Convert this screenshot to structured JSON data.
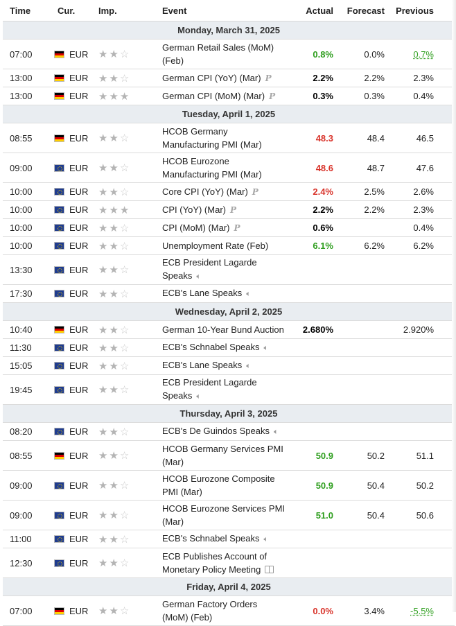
{
  "headers": {
    "time": "Time",
    "cur": "Cur.",
    "imp": "Imp.",
    "event": "Event",
    "actual": "Actual",
    "forecast": "Forecast",
    "previous": "Previous"
  },
  "colors": {
    "green": "#2e9e1e",
    "red": "#d9342b",
    "date_bar": "#e9edf1"
  },
  "groups": [
    {
      "date": "Monday, March 31, 2025",
      "rows": [
        {
          "time": "07:00",
          "flag": "de",
          "cur": "EUR",
          "stars": 2,
          "event": "German Retail Sales (MoM) (Feb)",
          "icon": "",
          "two": true,
          "actual": "0.8%",
          "actual_color": "green",
          "forecast": "0.0%",
          "previous": "0.7%",
          "previous_style": "prev-green"
        },
        {
          "time": "13:00",
          "flag": "de",
          "cur": "EUR",
          "stars": 2,
          "event": "German CPI (YoY) (Mar)",
          "icon": "preliminary-icon",
          "two": false,
          "actual": "2.2%",
          "actual_color": "black",
          "forecast": "2.2%",
          "previous": "2.3%",
          "previous_style": ""
        },
        {
          "time": "13:00",
          "flag": "de",
          "cur": "EUR",
          "stars": 3,
          "event": "German CPI (MoM) (Mar)",
          "icon": "preliminary-icon",
          "two": false,
          "actual": "0.3%",
          "actual_color": "black",
          "forecast": "0.3%",
          "previous": "0.4%",
          "previous_style": ""
        }
      ]
    },
    {
      "date": "Tuesday, April 1, 2025",
      "rows": [
        {
          "time": "08:55",
          "flag": "de",
          "cur": "EUR",
          "stars": 2,
          "event": "HCOB Germany Manufacturing PMI (Mar)",
          "icon": "",
          "two": true,
          "actual": "48.3",
          "actual_color": "red",
          "forecast": "48.4",
          "previous": "46.5",
          "previous_style": ""
        },
        {
          "time": "09:00",
          "flag": "eu",
          "cur": "EUR",
          "stars": 2,
          "event": "HCOB Eurozone Manufacturing PMI (Mar)",
          "icon": "",
          "two": true,
          "actual": "48.6",
          "actual_color": "red",
          "forecast": "48.7",
          "previous": "47.6",
          "previous_style": ""
        },
        {
          "time": "10:00",
          "flag": "eu",
          "cur": "EUR",
          "stars": 2,
          "event": "Core CPI (YoY) (Mar)",
          "icon": "preliminary-icon",
          "two": false,
          "actual": "2.4%",
          "actual_color": "red",
          "forecast": "2.5%",
          "previous": "2.6%",
          "previous_style": ""
        },
        {
          "time": "10:00",
          "flag": "eu",
          "cur": "EUR",
          "stars": 3,
          "event": "CPI (YoY) (Mar)",
          "icon": "preliminary-icon",
          "two": false,
          "actual": "2.2%",
          "actual_color": "black",
          "forecast": "2.2%",
          "previous": "2.3%",
          "previous_style": ""
        },
        {
          "time": "10:00",
          "flag": "eu",
          "cur": "EUR",
          "stars": 2,
          "event": "CPI (MoM) (Mar)",
          "icon": "preliminary-icon",
          "two": false,
          "actual": "0.6%",
          "actual_color": "black",
          "forecast": "",
          "previous": "0.4%",
          "previous_style": ""
        },
        {
          "time": "10:00",
          "flag": "eu",
          "cur": "EUR",
          "stars": 2,
          "event": "Unemployment Rate (Feb)",
          "icon": "",
          "two": false,
          "actual": "6.1%",
          "actual_color": "green",
          "forecast": "6.2%",
          "previous": "6.2%",
          "previous_style": ""
        },
        {
          "time": "13:30",
          "flag": "eu",
          "cur": "EUR",
          "stars": 2,
          "event": "ECB President Lagarde Speaks",
          "icon": "speaker-icon",
          "two": true,
          "actual": "",
          "actual_color": "black",
          "forecast": "",
          "previous": "",
          "previous_style": ""
        },
        {
          "time": "17:30",
          "flag": "eu",
          "cur": "EUR",
          "stars": 2,
          "event": "ECB's Lane Speaks",
          "icon": "speaker-icon",
          "two": false,
          "actual": "",
          "actual_color": "black",
          "forecast": "",
          "previous": "",
          "previous_style": ""
        }
      ]
    },
    {
      "date": "Wednesday, April 2, 2025",
      "rows": [
        {
          "time": "10:40",
          "flag": "de",
          "cur": "EUR",
          "stars": 2,
          "event": "German 10-Year Bund Auction",
          "icon": "",
          "two": false,
          "actual": "2.680%",
          "actual_color": "black",
          "forecast": "",
          "previous": "2.920%",
          "previous_style": ""
        },
        {
          "time": "11:30",
          "flag": "eu",
          "cur": "EUR",
          "stars": 2,
          "event": "ECB's Schnabel Speaks",
          "icon": "speaker-icon",
          "two": false,
          "actual": "",
          "actual_color": "black",
          "forecast": "",
          "previous": "",
          "previous_style": ""
        },
        {
          "time": "15:05",
          "flag": "eu",
          "cur": "EUR",
          "stars": 2,
          "event": "ECB's Lane Speaks",
          "icon": "speaker-icon",
          "two": false,
          "actual": "",
          "actual_color": "black",
          "forecast": "",
          "previous": "",
          "previous_style": ""
        },
        {
          "time": "19:45",
          "flag": "eu",
          "cur": "EUR",
          "stars": 2,
          "event": "ECB President Lagarde Speaks",
          "icon": "speaker-icon",
          "two": true,
          "actual": "",
          "actual_color": "black",
          "forecast": "",
          "previous": "",
          "previous_style": ""
        }
      ]
    },
    {
      "date": "Thursday, April 3, 2025",
      "rows": [
        {
          "time": "08:20",
          "flag": "eu",
          "cur": "EUR",
          "stars": 2,
          "event": "ECB's De Guindos Speaks",
          "icon": "speaker-icon",
          "two": false,
          "actual": "",
          "actual_color": "black",
          "forecast": "",
          "previous": "",
          "previous_style": ""
        },
        {
          "time": "08:55",
          "flag": "de",
          "cur": "EUR",
          "stars": 2,
          "event": "HCOB Germany Services PMI (Mar)",
          "icon": "",
          "two": true,
          "actual": "50.9",
          "actual_color": "green",
          "forecast": "50.2",
          "previous": "51.1",
          "previous_style": ""
        },
        {
          "time": "09:00",
          "flag": "eu",
          "cur": "EUR",
          "stars": 2,
          "event": "HCOB Eurozone Composite PMI (Mar)",
          "icon": "",
          "two": true,
          "actual": "50.9",
          "actual_color": "green",
          "forecast": "50.4",
          "previous": "50.2",
          "previous_style": ""
        },
        {
          "time": "09:00",
          "flag": "eu",
          "cur": "EUR",
          "stars": 2,
          "event": "HCOB Eurozone Services PMI (Mar)",
          "icon": "",
          "two": true,
          "actual": "51.0",
          "actual_color": "green",
          "forecast": "50.4",
          "previous": "50.6",
          "previous_style": ""
        },
        {
          "time": "11:00",
          "flag": "eu",
          "cur": "EUR",
          "stars": 2,
          "event": "ECB's Schnabel Speaks",
          "icon": "speaker-icon",
          "two": false,
          "actual": "",
          "actual_color": "black",
          "forecast": "",
          "previous": "",
          "previous_style": ""
        },
        {
          "time": "12:30",
          "flag": "eu",
          "cur": "EUR",
          "stars": 2,
          "event": "ECB Publishes Account of Monetary Policy Meeting",
          "icon": "report-icon",
          "two": true,
          "actual": "",
          "actual_color": "black",
          "forecast": "",
          "previous": "",
          "previous_style": ""
        }
      ]
    },
    {
      "date": "Friday, April 4, 2025",
      "rows": [
        {
          "time": "07:00",
          "flag": "de",
          "cur": "EUR",
          "stars": 2,
          "event": "German Factory Orders (MoM) (Feb)",
          "icon": "",
          "two": true,
          "actual": "0.0%",
          "actual_color": "red",
          "forecast": "3.4%",
          "previous": "-5.5%",
          "previous_style": "prev-green"
        }
      ]
    }
  ]
}
